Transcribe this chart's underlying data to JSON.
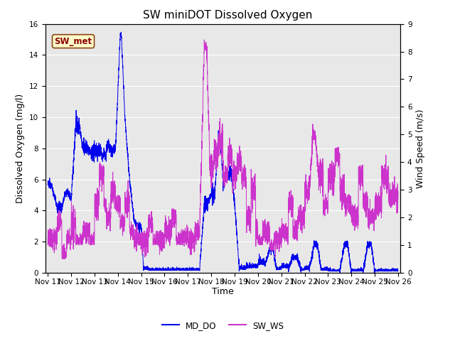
{
  "title": "SW miniDOT Dissolved Oxygen",
  "xlabel": "Time",
  "ylabel_left": "Dissolved Oxygen (mg/l)",
  "ylabel_right": "Wind Speed (m/s)",
  "legend_label_blue": "MD_DO",
  "legend_label_purple": "SW_WS",
  "annotation_text": "SW_met",
  "annotation_color": "#8B0000",
  "annotation_bg": "#FFFFCC",
  "annotation_border": "#8B4513",
  "blue_color": "#0000EE",
  "purple_color": "#CC33CC",
  "ylim_left": [
    0,
    16
  ],
  "ylim_right": [
    0,
    9.0
  ],
  "yticks_left": [
    0,
    2,
    4,
    6,
    8,
    10,
    12,
    14,
    16
  ],
  "yticks_right": [
    0.0,
    1.0,
    2.0,
    3.0,
    4.0,
    5.0,
    6.0,
    7.0,
    8.0,
    9.0
  ],
  "background_color": "#E8E8E8",
  "fig_bg": "#FFFFFF",
  "title_fontsize": 11,
  "axis_label_fontsize": 9,
  "tick_fontsize": 7.5,
  "xtick_labels": [
    "Nov 11",
    "Nov 12",
    "Nov 13",
    "Nov 14",
    "Nov 15",
    "Nov 16",
    "Nov 17",
    "Nov 18",
    "Nov 19",
    "Nov 20",
    "Nov 21",
    "Nov 22",
    "Nov 23",
    "Nov 24",
    "Nov 25",
    "Nov 26"
  ],
  "xtick_positions": [
    0,
    1,
    2,
    3,
    4,
    5,
    6,
    7,
    8,
    9,
    10,
    11,
    12,
    13,
    14,
    15
  ],
  "xlim": [
    -0.1,
    15.1
  ]
}
